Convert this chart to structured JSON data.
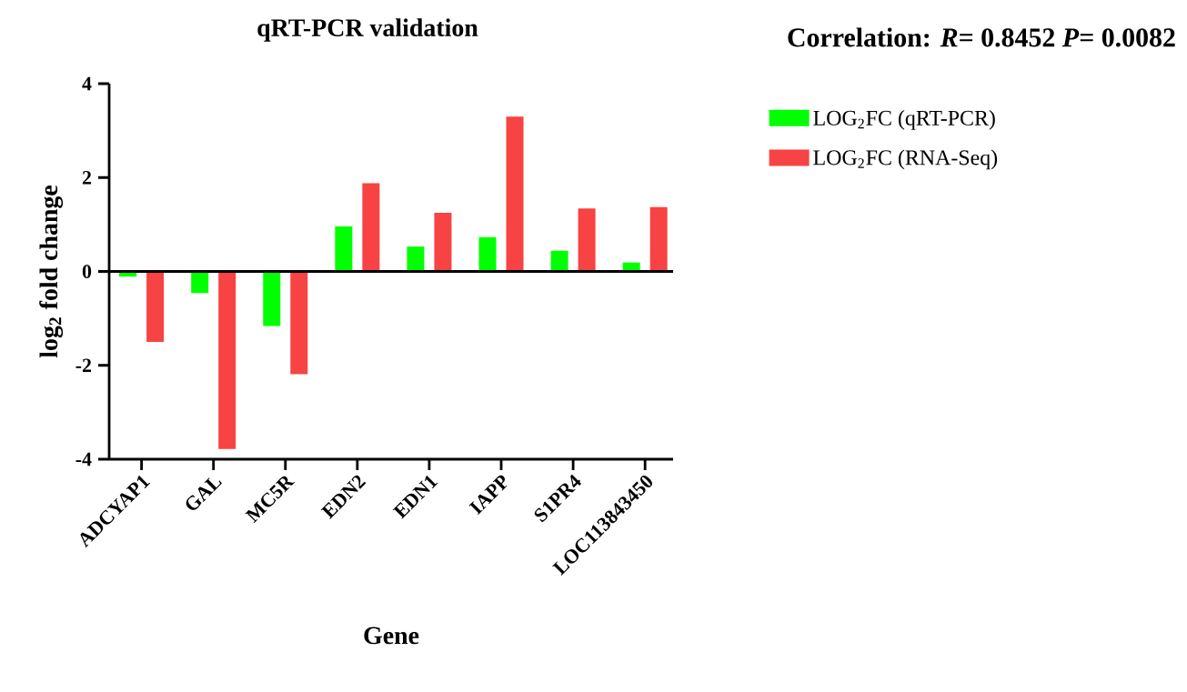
{
  "chart_data": {
    "type": "bar",
    "title": "qRT-PCR validation",
    "xlabel": "Gene",
    "ylabel": "log$_{2}$ fold change",
    "annotations": [
      "Correlation: *R*= 0.8452  *P*= 0.0082"
    ],
    "categories": [
      "ADCYAP1",
      "GAL",
      "MC5R",
      "EDN2",
      "EDN1",
      "IAPP",
      "S1PR4",
      "LOC113843450"
    ],
    "series": [
      {
        "name": "LOG$_{2}$FC (qRT-PCR)",
        "color": "#00ff00",
        "values": [
          -0.11,
          -0.46,
          -1.16,
          0.96,
          0.53,
          0.73,
          0.44,
          0.19
        ]
      },
      {
        "name": "LOG$_{2}$FC (RNA-Seq)",
        "color": "#f74343",
        "values": [
          -1.5,
          -3.78,
          -2.19,
          1.88,
          1.25,
          3.3,
          1.34,
          1.37
        ]
      }
    ],
    "ylim": [
      -4,
      4
    ],
    "yticks": [
      -4,
      -2,
      0,
      2,
      4
    ],
    "legend": "right"
  }
}
